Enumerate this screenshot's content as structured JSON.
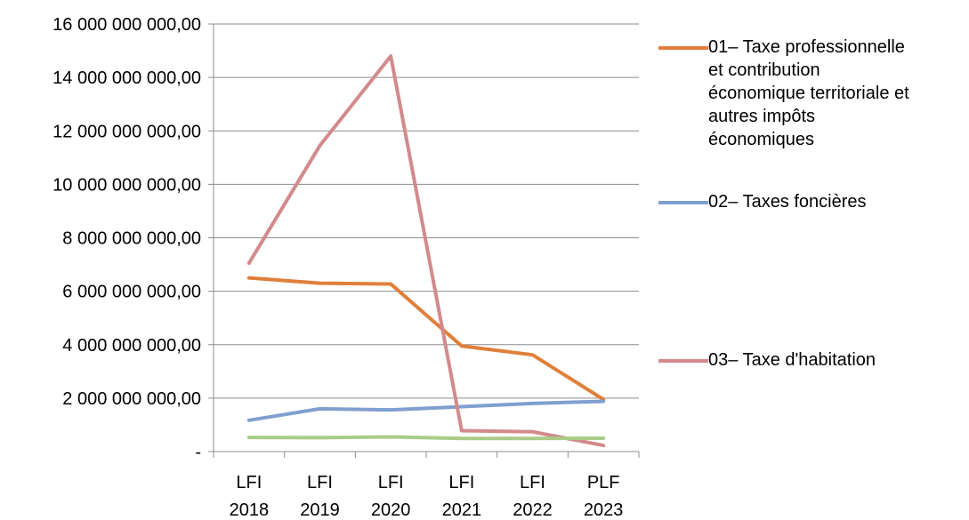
{
  "chart_data": {
    "type": "line",
    "categories": [
      [
        "LFI",
        "2018"
      ],
      [
        "LFI",
        "2019"
      ],
      [
        "LFI",
        "2020"
      ],
      [
        "LFI",
        "2021"
      ],
      [
        "LFI",
        "2022"
      ],
      [
        "PLF",
        "2023"
      ]
    ],
    "y_tick_labels": [
      {
        "value": 16000000000,
        "label": "16 000 000 000,00"
      },
      {
        "value": 14000000000,
        "label": "14 000 000 000,00"
      },
      {
        "value": 12000000000,
        "label": "12 000 000 000,00"
      },
      {
        "value": 10000000000,
        "label": "10 000 000 000,00"
      },
      {
        "value": 8000000000,
        "label": "8 000 000 000,00"
      },
      {
        "value": 6000000000,
        "label": "6 000 000 000,00"
      },
      {
        "value": 4000000000,
        "label": "4 000 000 000,00"
      },
      {
        "value": 2000000000,
        "label": "2 000 000 000,00"
      },
      {
        "value": 0,
        "label": "-"
      }
    ],
    "ylim": [
      0,
      16000000000
    ],
    "grid": true,
    "legend_placement": "right",
    "series": [
      {
        "name": "01– Taxe professionnelle et contribution économique territoriale et autres impôts économiques",
        "legend_lines": [
          "01– Taxe professionnelle",
          "et contribution",
          "économique territoriale et",
          "autres impôts",
          "économiques"
        ],
        "color": "#e07f3a",
        "values": [
          6500000000,
          6300000000,
          6270000000,
          3950000000,
          3620000000,
          1950000000
        ]
      },
      {
        "name": "02– Taxes foncières",
        "legend_lines": [
          "02– Taxes foncières"
        ],
        "color": "#809fcf",
        "values": [
          1170000000,
          1600000000,
          1560000000,
          1680000000,
          1800000000,
          1880000000
        ]
      },
      {
        "name": "03– Taxe d'habitation",
        "legend_lines": [
          "03– Taxe d'habitation"
        ],
        "color": "#d28a8c",
        "values": [
          7050000000,
          11450000000,
          14800000000,
          780000000,
          740000000,
          230000000
        ]
      },
      {
        "name": "",
        "legend_lines": [],
        "color": "#a9cb88",
        "values": [
          530000000,
          520000000,
          550000000,
          490000000,
          490000000,
          500000000
        ]
      }
    ]
  }
}
